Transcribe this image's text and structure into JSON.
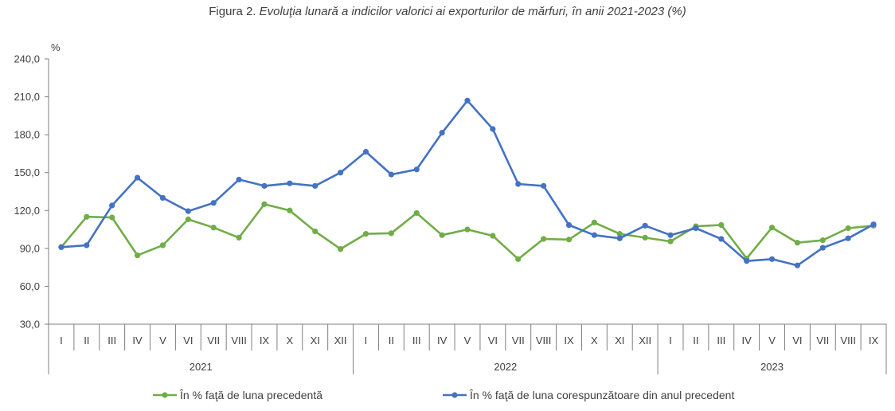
{
  "chart_data": {
    "type": "line",
    "title_prefix": "Figura 2. ",
    "title_main": "Evoluţia lunară a indicilor valorici ai exporturilor de mărfuri, în anii 2021-2023 (%)",
    "ylabel": "%",
    "ylim": [
      30,
      240
    ],
    "yticks": [
      "30,0",
      "60,0",
      "90,0",
      "120,0",
      "150,0",
      "180,0",
      "210,0",
      "240,0"
    ],
    "ytick_values": [
      30,
      60,
      90,
      120,
      150,
      180,
      210,
      240
    ],
    "years": [
      {
        "label": "2021",
        "months": 12
      },
      {
        "label": "2022",
        "months": 12
      },
      {
        "label": "2023",
        "months": 9
      }
    ],
    "categories": [
      "I",
      "II",
      "III",
      "IV",
      "V",
      "VI",
      "VII",
      "VIII",
      "IX",
      "X",
      "XI",
      "XII",
      "I",
      "II",
      "III",
      "IV",
      "V",
      "VI",
      "VII",
      "VIII",
      "IX",
      "X",
      "XI",
      "XII",
      "I",
      "II",
      "III",
      "IV",
      "V",
      "VI",
      "VII",
      "VIII",
      "IX"
    ],
    "grid": false,
    "legend_position": "bottom",
    "series": [
      {
        "name": "În % faţă de luna precedentă",
        "color": "#70ad47",
        "values": [
          91.0,
          115.0,
          114.5,
          84.5,
          92.5,
          113.0,
          106.5,
          98.5,
          125.0,
          120.0,
          103.5,
          89.5,
          101.5,
          102.0,
          118.0,
          100.5,
          105.0,
          100.0,
          81.5,
          97.5,
          97.0,
          110.5,
          101.5,
          98.5,
          95.5,
          107.5,
          108.5,
          82.0,
          106.5,
          94.5,
          96.5,
          106.0,
          108.0
        ]
      },
      {
        "name": "În % faţă de luna corespunzătoare din anul precedent",
        "color": "#4472c4",
        "values": [
          91.0,
          92.5,
          124.0,
          146.0,
          130.0,
          119.5,
          126.0,
          144.5,
          139.5,
          141.5,
          139.5,
          150.0,
          166.5,
          148.5,
          152.5,
          181.5,
          207.0,
          184.5,
          141.0,
          139.5,
          108.5,
          100.5,
          98.0,
          108.0,
          100.5,
          106.0,
          97.5,
          80.0,
          81.5,
          76.5,
          90.5,
          98.0,
          109.0
        ]
      }
    ]
  }
}
